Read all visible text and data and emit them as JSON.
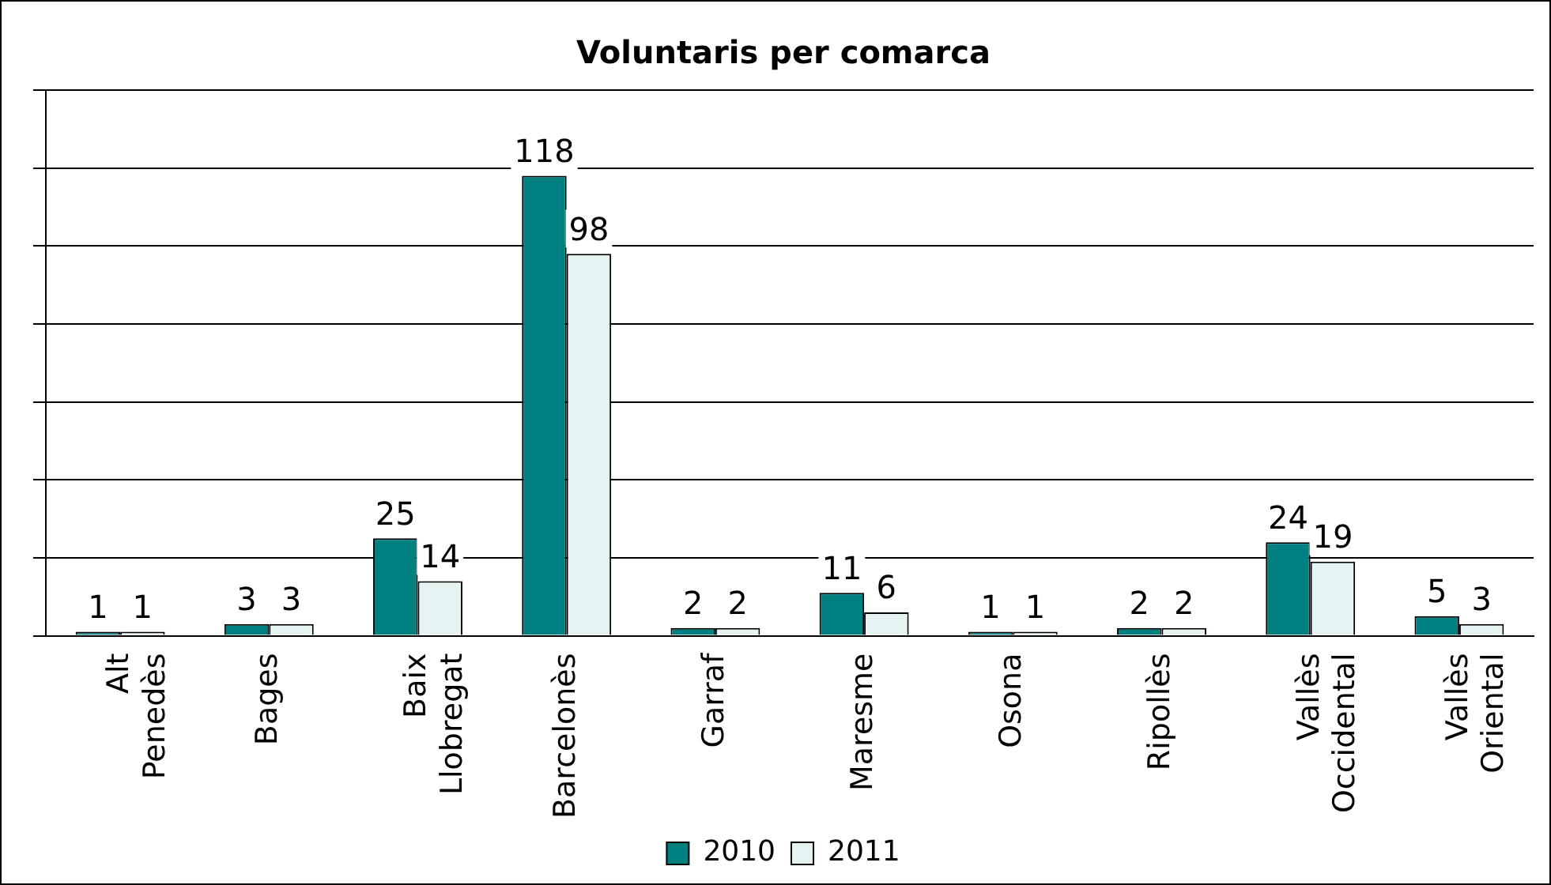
{
  "chart_data": {
    "type": "bar",
    "title": "Voluntaris per comarca",
    "categories": [
      "Alt Penedès",
      "Bages",
      "Baix Llobregat",
      "Barcelonès",
      "Garraf",
      "Maresme",
      "Osona",
      "Ripollès",
      "Vallès Occidental",
      "Vallès Oriental"
    ],
    "series": [
      {
        "name": "2010",
        "color": "#008080",
        "values": [
          1,
          3,
          25,
          118,
          2,
          11,
          1,
          2,
          24,
          5
        ]
      },
      {
        "name": "2011",
        "color": "#e6f3f3",
        "values": [
          1,
          3,
          14,
          98,
          2,
          6,
          1,
          2,
          19,
          3
        ]
      }
    ],
    "ylim": [
      0,
      140
    ],
    "tick_labels": "x",
    "grid": "y",
    "legend": "bottom",
    "data_labels": true
  }
}
